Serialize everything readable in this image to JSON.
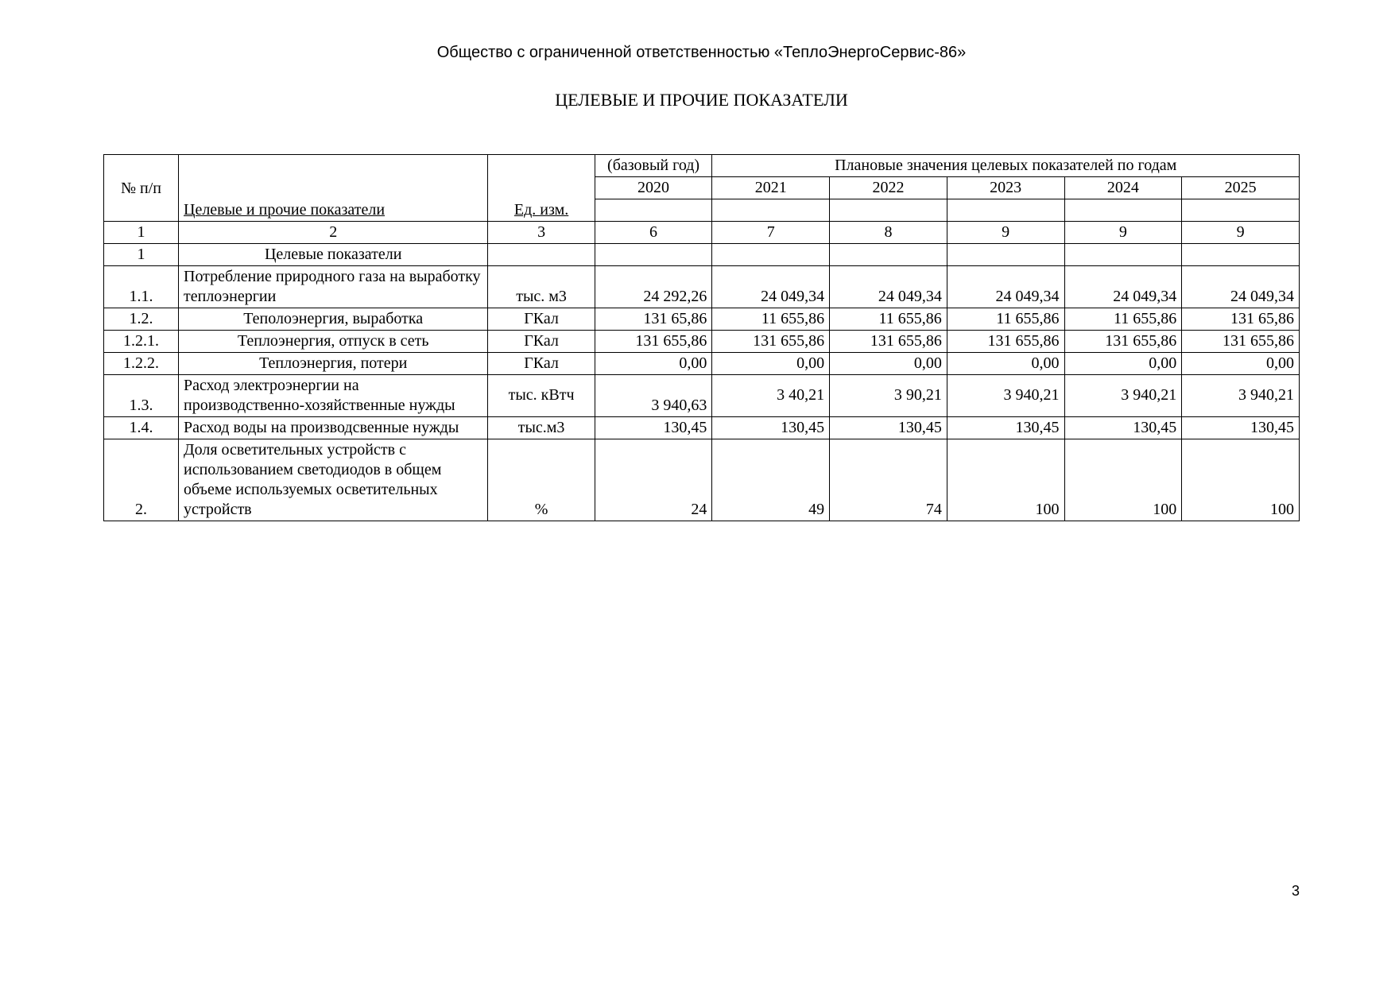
{
  "org": "Общество с ограниченной ответственностью «ТеплоЭнергоСервис-86»",
  "title": "ЦЕЛЕВЫЕ И ПРОЧИЕ ПОКАЗАТЕЛИ",
  "page_number": "3",
  "header": {
    "col_num": "№ п/п",
    "col_name": "Целевые и прочие показатели",
    "col_unit": "Ед. изм.",
    "base_label": "(базовый год)",
    "plan_label": "Плановые значения целевых показателей по годам",
    "years": {
      "y2020": "2020",
      "y2021": "2021",
      "y2022": "2022",
      "y2023": "2023",
      "y2024": "2024",
      "y2025": "2025"
    },
    "idx": {
      "c1": "1",
      "c2": "2",
      "c3": "3",
      "c6": "6",
      "c7": "7",
      "c8": "8",
      "c9a": "9",
      "c9b": "9",
      "c9c": "9"
    }
  },
  "rows": {
    "r0": {
      "num": "1",
      "name": "Целевые показатели"
    },
    "r1": {
      "num": "1.1.",
      "name": "Потребление природного газа на выработку теплоэнергии",
      "unit": "тыс. м3",
      "v2020": "24 292,26",
      "v2021": "24 049,34",
      "v2022": "24 049,34",
      "v2023": "24 049,34",
      "v2024": "24 049,34",
      "v2025": "24 049,34"
    },
    "r2": {
      "num": "1.2.",
      "name": "Теполоэнергия, выработка",
      "unit": "ГКал",
      "v2020": "131 65,86",
      "v2021": "11 655,86",
      "v2022": "11 655,86",
      "v2023": "11 655,86",
      "v2024": "11 655,86",
      "v2025": "131 65,86"
    },
    "r3": {
      "num": "1.2.1.",
      "name": "Теплоэнергия, отпуск в сеть",
      "unit": "ГКал",
      "v2020": "131 655,86",
      "v2021": "131 655,86",
      "v2022": "131 655,86",
      "v2023": "131 655,86",
      "v2024": "131 655,86",
      "v2025": "131 655,86"
    },
    "r4": {
      "num": "1.2.2.",
      "name": "Теплоэнергия, потери",
      "unit": "ГКал",
      "v2020": "0,00",
      "v2021": "0,00",
      "v2022": "0,00",
      "v2023": "0,00",
      "v2024": "0,00",
      "v2025": "0,00"
    },
    "r5": {
      "num": "1.3.",
      "name": "Расход электроэнергии на производственно-хозяйственные нужды",
      "unit": "тыс. кВтч",
      "v2020": "3 940,63",
      "v2021": "3 40,21",
      "v2022": "3 90,21",
      "v2023": "3 940,21",
      "v2024": "3 940,21",
      "v2025": "3 940,21"
    },
    "r6": {
      "num": "1.4.",
      "name": "Расход воды на производсвенные нужды",
      "unit": "тыс.м3",
      "v2020": "130,45",
      "v2021": "130,45",
      "v2022": "130,45",
      "v2023": "130,45",
      "v2024": "130,45",
      "v2025": "130,45"
    },
    "r7": {
      "num": "2.",
      "name": "Доля осветительных устройств с использованием светодиодов в общем объеме используемых осветительных устройств",
      "unit": "%",
      "v2020": "24",
      "v2021": "49",
      "v2022": "74",
      "v2023": "100",
      "v2024": "100",
      "v2025": "100"
    }
  },
  "style": {
    "font_body": "Times New Roman",
    "font_header": "Arial",
    "text_color": "#000000",
    "bg_color": "#ffffff",
    "border_color": "#000000",
    "base_font_size_pt": 15
  }
}
